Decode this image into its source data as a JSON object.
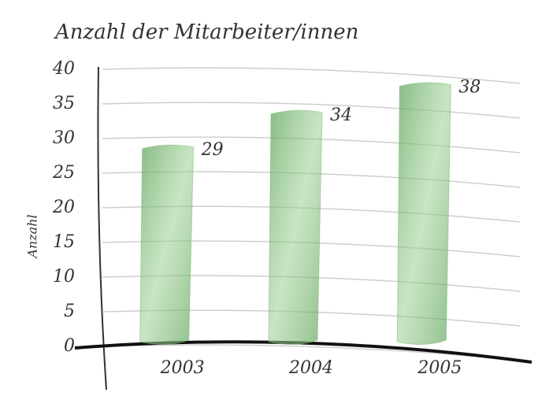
{
  "chart_data": {
    "type": "bar",
    "title": "Anzahl der Mitarbeiter/innen",
    "y_label": "Anzahl",
    "categories": [
      "2003",
      "2004",
      "2005"
    ],
    "values": [
      29,
      34,
      38
    ],
    "color": "#7cb873",
    "ylim": [
      0,
      40
    ],
    "yticks": [
      0,
      5,
      10,
      15,
      20,
      25,
      30,
      35,
      40
    ],
    "grid": true
  }
}
